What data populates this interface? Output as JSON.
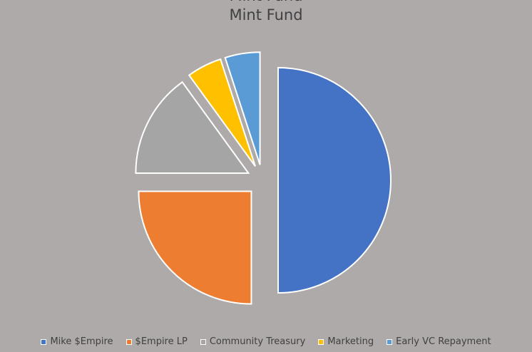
{
  "chart_data": {
    "type": "pie",
    "title": "Mint Fund",
    "categories": [
      "Mike $Empire",
      "$Empire LP",
      "Community Treasury",
      "Marketing",
      "Early VC Repayment"
    ],
    "values": [
      50,
      25,
      15,
      5,
      5
    ],
    "colors": [
      "#4472c4",
      "#ed7d31",
      "#a5a5a5",
      "#ffc000",
      "#5b9bd5"
    ],
    "exploded": true,
    "legend_position": "bottom"
  }
}
